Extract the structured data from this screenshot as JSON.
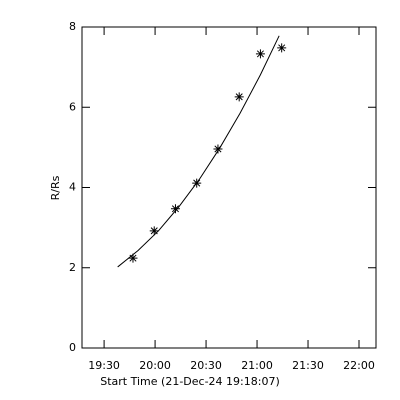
{
  "chart_data": {
    "type": "scatter",
    "xlabel": "Start Time (21-Dec-24 19:18:07)",
    "ylabel": "R/Rs",
    "xlim": [
      1157,
      1330
    ],
    "ylim": [
      0,
      8
    ],
    "xticks": [
      {
        "value": 1170,
        "label": "19:30"
      },
      {
        "value": 1200,
        "label": "20:00"
      },
      {
        "value": 1230,
        "label": "20:30"
      },
      {
        "value": 1260,
        "label": "21:00"
      },
      {
        "value": 1290,
        "label": "21:30"
      },
      {
        "value": 1320,
        "label": "22:00"
      }
    ],
    "yticks": [
      0,
      2,
      4,
      6,
      8
    ],
    "color": "#000000",
    "series": [
      {
        "marker": "asterisk",
        "x": [
          1187,
          1199.5,
          1212,
          1224.5,
          1237,
          1249.5,
          1262,
          1274.5
        ],
        "values": [
          2.24,
          2.92,
          3.47,
          4.11,
          4.96,
          6.26,
          7.33,
          7.48
        ]
      },
      {
        "marker": "line",
        "x": [
          1178,
          1190,
          1202,
          1214,
          1226,
          1238,
          1250,
          1262,
          1273
        ],
        "values": [
          2.02,
          2.43,
          2.92,
          3.52,
          4.2,
          4.98,
          5.85,
          6.81,
          7.78
        ]
      }
    ]
  }
}
